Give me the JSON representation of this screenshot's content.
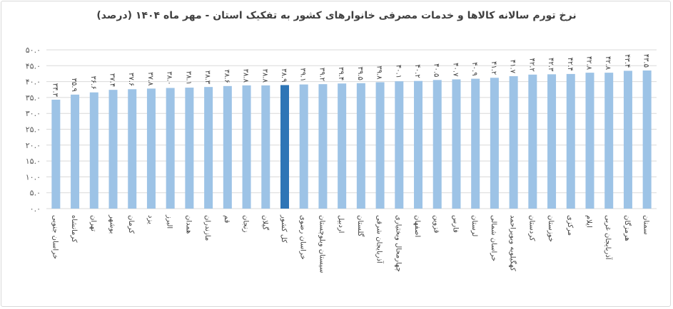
{
  "chart_data": {
    "type": "bar",
    "title": "نرخ تورم سالانه کالاها و خدمات مصرفی خانوارهای کشور به تفکیک استان - مهر ماه ۱۴۰۴ (درصد)",
    "xlabel": "",
    "ylabel": "",
    "ylim": [
      0,
      50
    ],
    "yticks": [
      "۰.۰",
      "۵.۰",
      "۱۰.۰",
      "۱۵.۰",
      "۲۰.۰",
      "۲۵.۰",
      "۳۰.۰",
      "۳۵.۰",
      "۴۰.۰",
      "۴۵.۰",
      "۵۰.۰"
    ],
    "grid": true,
    "legend": "none",
    "categories": [
      "خراسان جنوبی",
      "کرمانشاه",
      "تهران",
      "بوشهر",
      "کرمان",
      "یزد",
      "البرز",
      "همدان",
      "مازندران",
      "قم",
      "زنجان",
      "گیلان",
      "کل کشور",
      "خراسان رضوی",
      "سیستان وبلوچستان",
      "اردبیل",
      "گلستان",
      "آذربایجان شرقی",
      "چهارمحال وبختیاری",
      "اصفهان",
      "قزوین",
      "فارس",
      "لرستان",
      "خراسان شمالی",
      "کهگیلویه وبویراحمد",
      "کردستان",
      "خوزستان",
      "مرکزی",
      "ایلام",
      "آذربایجان غربی",
      "هرمزگان",
      "سمنان"
    ],
    "values": [
      34.3,
      35.9,
      36.6,
      37.4,
      37.6,
      37.8,
      38.0,
      38.1,
      38.3,
      38.6,
      38.8,
      38.8,
      38.9,
      39.1,
      39.2,
      39.4,
      39.5,
      39.8,
      40.1,
      40.2,
      40.5,
      40.7,
      40.9,
      41.2,
      41.7,
      42.2,
      42.3,
      42.4,
      42.8,
      42.8,
      43.4,
      43.5
    ],
    "highlight_category": "کل کشور",
    "colors": {
      "bar": "#9dc3e6",
      "highlight": "#2e75b6",
      "grid": "#d9d9d9"
    }
  }
}
